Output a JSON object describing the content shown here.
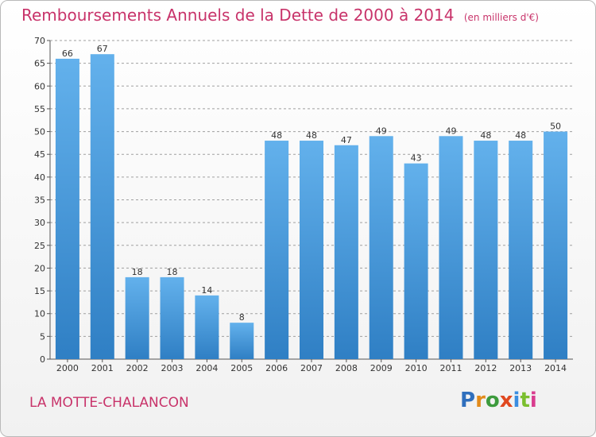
{
  "title": "Remboursements Annuels de la Dette de 2000 à 2014",
  "subtitle": "(en milliers d'€)",
  "city": "LA MOTTE-CHALANCON",
  "logo": "Proxiti",
  "colors": {
    "title": "#c8336a",
    "bar_light": "#63b1ec",
    "bar_dark": "#2f7fc4",
    "grid": "#9a9a9a"
  },
  "chart_data": {
    "type": "bar",
    "categories": [
      "2000",
      "2001",
      "2002",
      "2003",
      "2004",
      "2005",
      "2006",
      "2007",
      "2008",
      "2009",
      "2010",
      "2011",
      "2012",
      "2013",
      "2014"
    ],
    "values": [
      66,
      67,
      18,
      18,
      14,
      8,
      48,
      48,
      47,
      49,
      43,
      49,
      48,
      48,
      50
    ],
    "title": "Remboursements Annuels de la Dette de 2000 à 2014",
    "subtitle": "(en milliers d'€)",
    "ylim": [
      0,
      70
    ],
    "yticks": [
      0,
      5,
      10,
      15,
      20,
      25,
      30,
      35,
      40,
      45,
      50,
      55,
      60,
      65,
      70
    ],
    "grid": true,
    "data_labels": true
  }
}
